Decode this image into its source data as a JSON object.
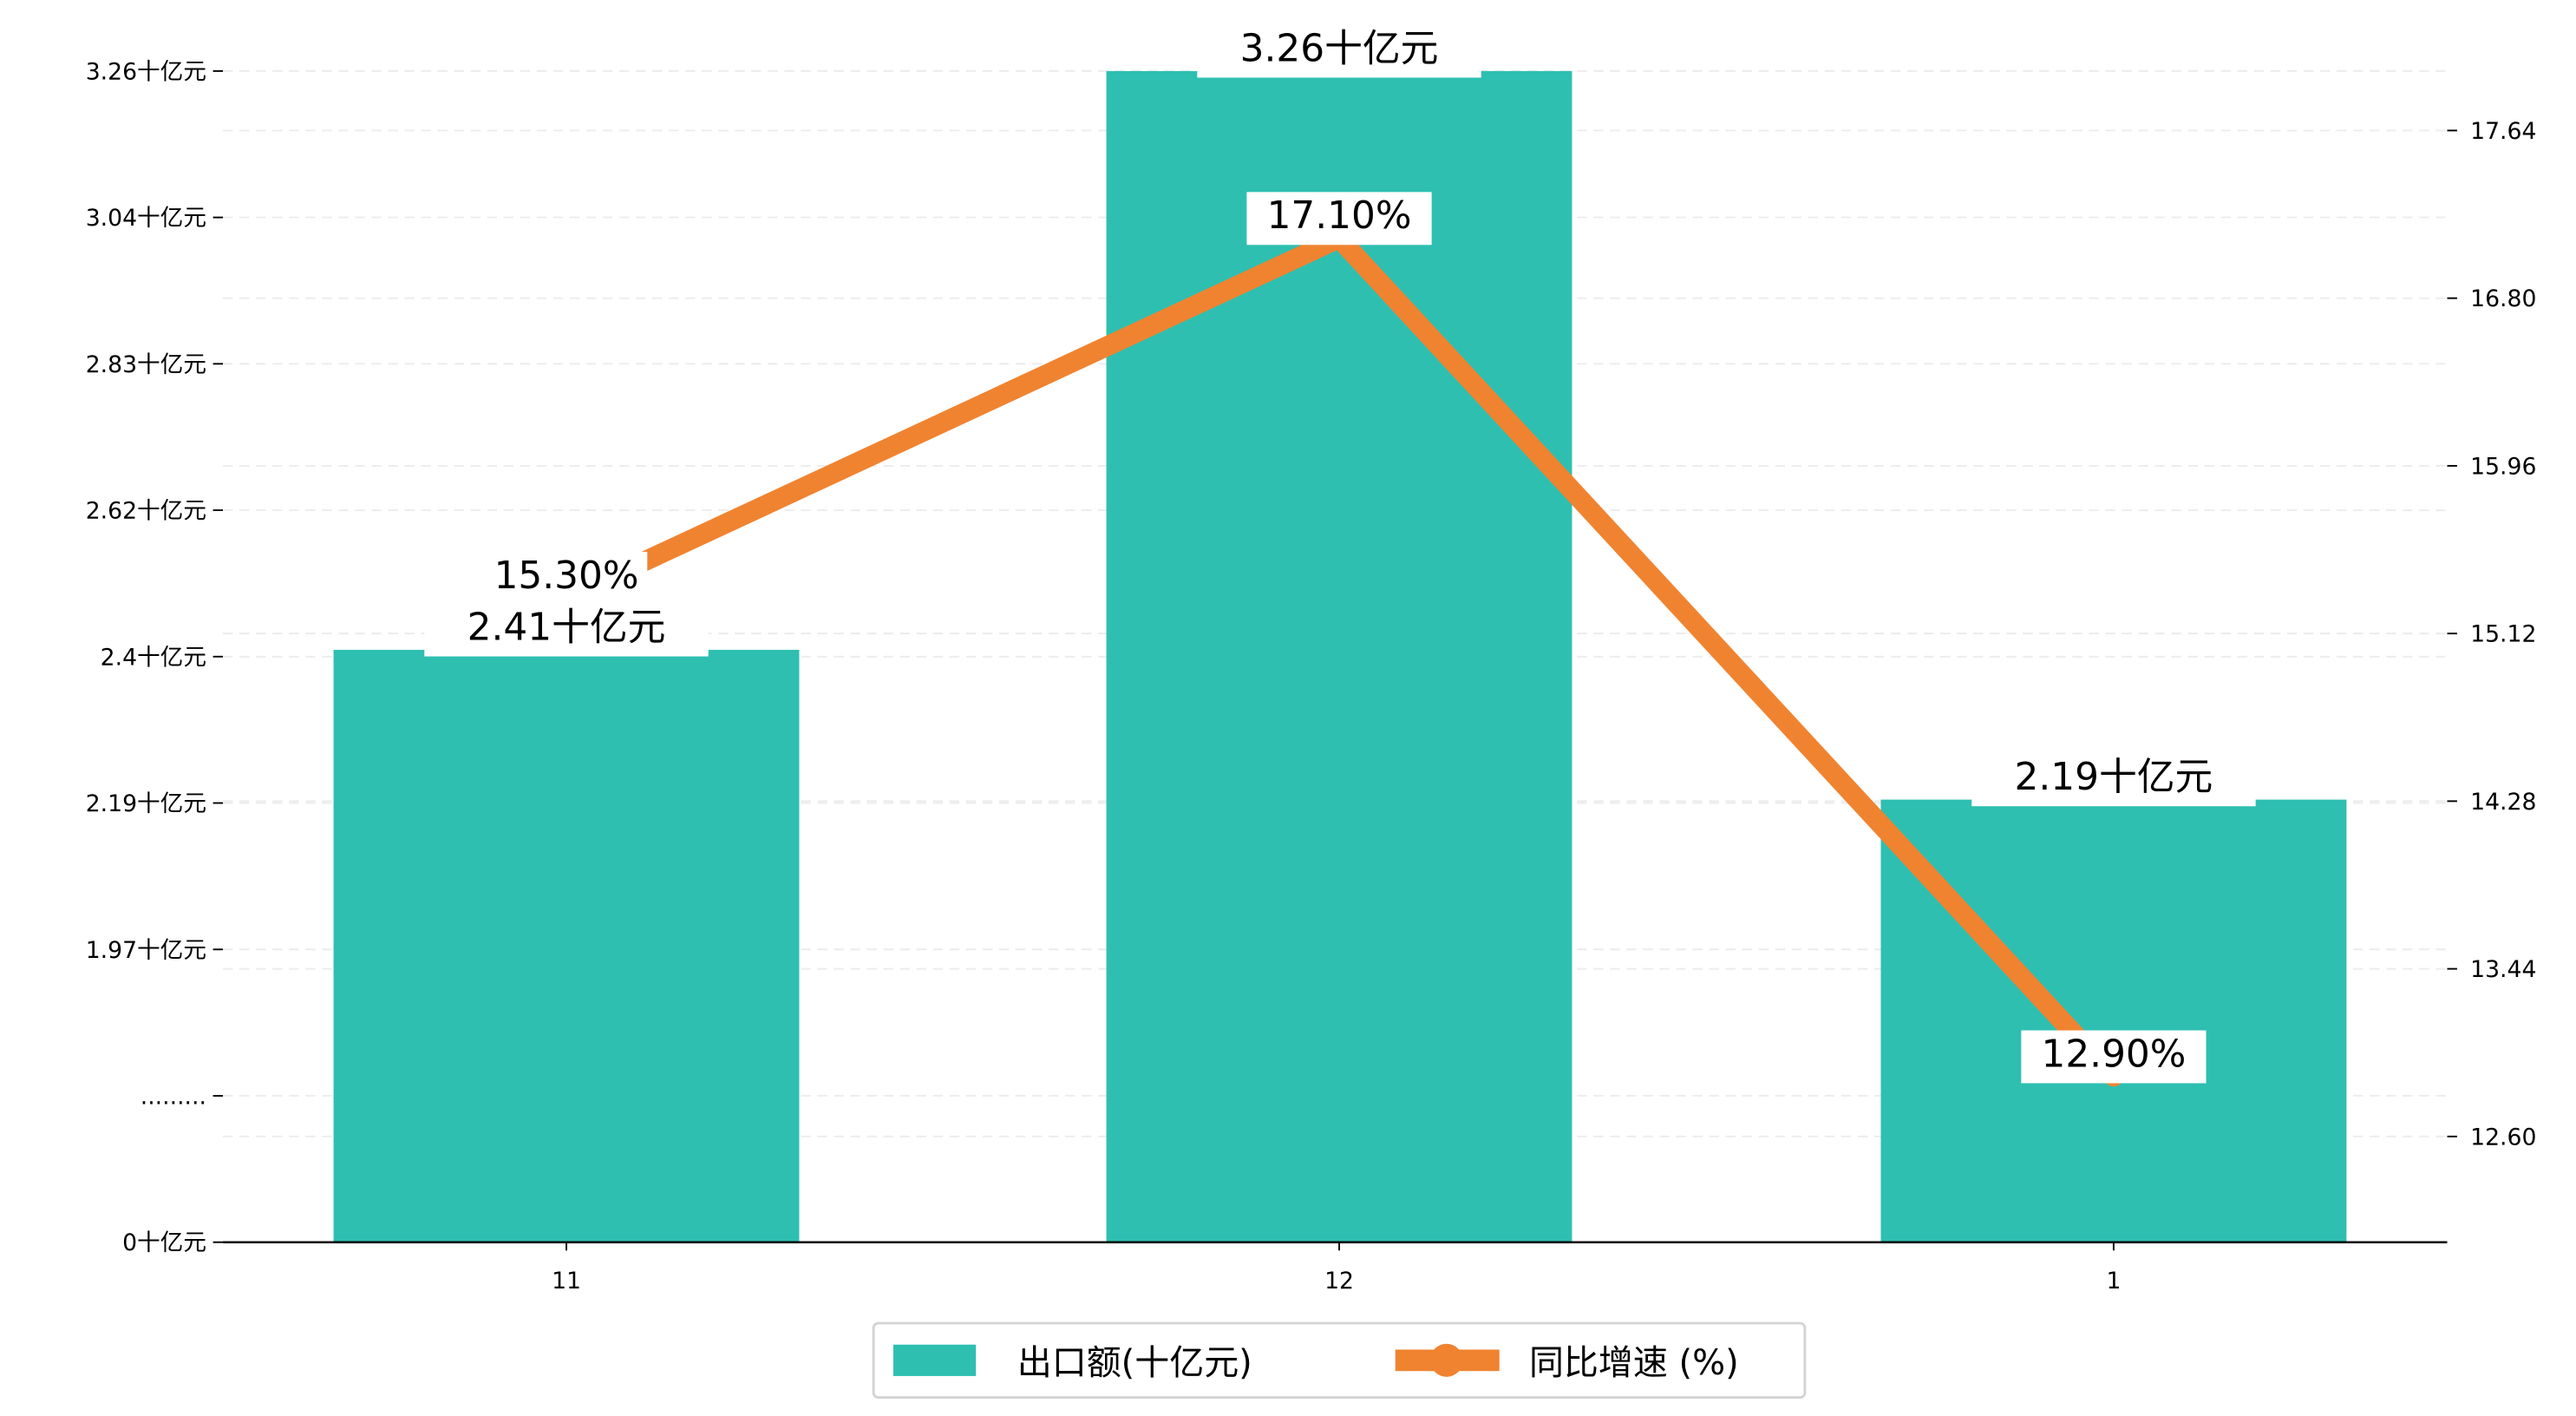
{
  "chart_data": {
    "type": "bar+line",
    "categories": [
      "11",
      "12",
      "1"
    ],
    "series": [
      {
        "name": "出口额(十亿元)",
        "type": "bar",
        "axis": "left",
        "values": [
          2.41,
          3.26,
          2.19
        ],
        "labels": [
          "2.41十亿元",
          "3.26十亿元",
          "2.19十亿元"
        ],
        "color": "#2ebfb1"
      },
      {
        "name": "同比增速 (%)",
        "type": "line",
        "axis": "right",
        "values": [
          15.3,
          17.1,
          12.9
        ],
        "labels": [
          "15.30%",
          "17.10%",
          "12.90%"
        ],
        "color": "#f08330"
      }
    ],
    "left_axis": {
      "ticks": [
        0,
        null,
        1.97,
        2.19,
        2.4,
        2.62,
        2.83,
        3.04,
        3.26
      ],
      "tick_labels": [
        "0十亿元",
        ".........",
        "1.97十亿元",
        "2.19十亿元",
        "2.4十亿元",
        "2.62十亿元",
        "2.83十亿元",
        "3.04十亿元",
        "3.26十亿元"
      ]
    },
    "right_axis": {
      "ticks": [
        12.6,
        13.44,
        14.28,
        15.12,
        15.96,
        16.8,
        17.64
      ],
      "tick_labels": [
        "12.60",
        "13.44",
        "14.28",
        "15.12",
        "15.96",
        "16.80",
        "17.64"
      ]
    },
    "grid": true,
    "legend": {
      "placement": "bottom-center",
      "entries": [
        "出口额(十亿元)",
        "同比增速 (%)"
      ]
    }
  }
}
